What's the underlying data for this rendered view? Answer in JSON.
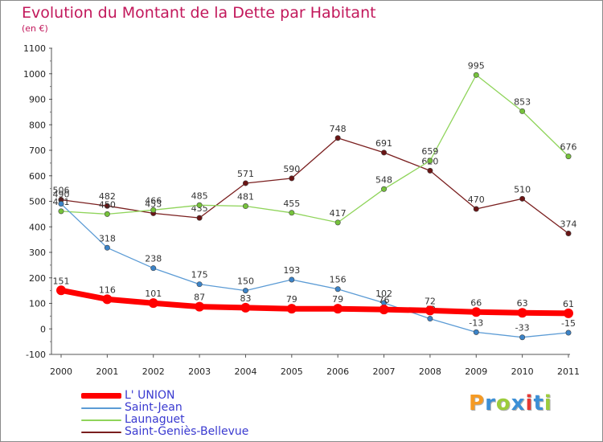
{
  "title": "Evolution du Montant de la Dette par Habitant",
  "unit": "(en €)",
  "brand": {
    "text": "Proxiti",
    "colors": [
      "#f59a23",
      "#3b8fd6",
      "#9ccc3c",
      "#3b8fd6",
      "#e53935",
      "#3b8fd6",
      "#9ccc3c"
    ]
  },
  "chart_data": {
    "type": "line",
    "x": [
      2000,
      2001,
      2002,
      2003,
      2004,
      2005,
      2006,
      2007,
      2008,
      2009,
      2010,
      2011
    ],
    "ylim": [
      -100,
      1100
    ],
    "yticks": [
      -100,
      0,
      100,
      200,
      300,
      400,
      500,
      600,
      700,
      800,
      900,
      1000,
      1100
    ],
    "grid": false,
    "legend_position": "bottom-left",
    "series": [
      {
        "name": "Saint-Geniès-Bellevue",
        "color": "#7a1f1f",
        "marker": "#6a1515",
        "values": [
          506,
          482,
          453,
          435,
          571,
          590,
          748,
          691,
          620,
          470,
          510,
          374
        ]
      },
      {
        "name": "Launaguet",
        "color": "#8fd45a",
        "marker": "#76c23b",
        "values": [
          461,
          450,
          466,
          485,
          481,
          455,
          417,
          548,
          659,
          995,
          853,
          676
        ]
      },
      {
        "name": "Saint-Jean",
        "color": "#5b9bd5",
        "marker": "#3b83c8",
        "values": [
          490,
          318,
          238,
          175,
          150,
          193,
          156,
          102,
          40,
          -13,
          -33,
          -15
        ]
      },
      {
        "name": "L' UNION",
        "color": "#ff0000",
        "marker": "#ff0000",
        "values": [
          151,
          116,
          101,
          87,
          83,
          79,
          79,
          76,
          72,
          66,
          63,
          61
        ]
      }
    ],
    "point_labels": [
      [
        "506",
        "482",
        "453",
        "435",
        "571",
        "590",
        "748",
        "691",
        "620",
        "470",
        "510",
        "374"
      ],
      [
        "461",
        "450",
        "466",
        "485",
        "481",
        "455",
        "417",
        "548",
        "659",
        "995",
        "853",
        "676"
      ],
      [
        "490",
        "318",
        "238",
        "175",
        "150",
        "193",
        "156",
        "102",
        "40",
        "-13",
        "-33",
        "-15"
      ],
      [
        "151",
        "116",
        "101",
        "87",
        "83",
        "79",
        "79",
        "76",
        "72",
        "66",
        "63",
        "61"
      ]
    ],
    "legend_order": [
      "L' UNION",
      "Saint-Jean",
      "Launaguet",
      "Saint-Geniès-Bellevue"
    ]
  }
}
